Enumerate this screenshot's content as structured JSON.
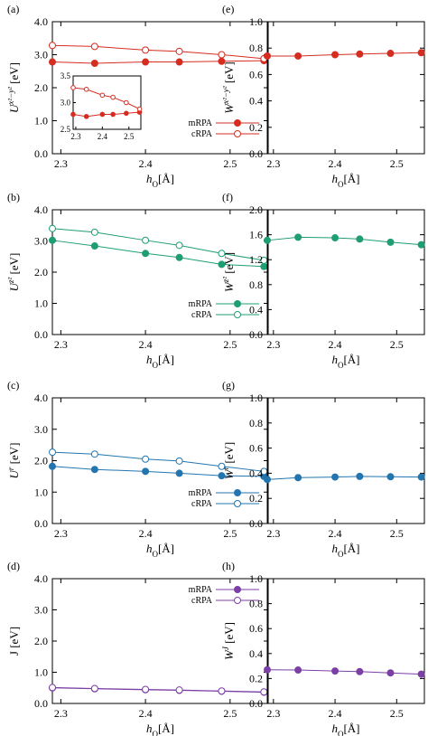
{
  "x_axis_label": "h_O [Å]",
  "chart_data": [
    {
      "panel": "(a)",
      "type": "line",
      "ylabel": "U^{x²−y²} [eV]",
      "xlim": [
        2.29,
        2.545
      ],
      "ylim": [
        0.0,
        4.0
      ],
      "xticks": [
        2.3,
        2.4,
        2.5
      ],
      "yticks": [
        0.0,
        1.0,
        2.0,
        3.0,
        4.0
      ],
      "tick_labels_x": [
        "2.3",
        "2.4",
        "2.5"
      ],
      "tick_labels_y": [
        "0.0",
        "1.0",
        "2.0",
        "3.0",
        "4.0"
      ],
      "color": "#d62d20",
      "legend": "bottom-right",
      "x": [
        2.29,
        2.34,
        2.4,
        2.44,
        2.49,
        2.54
      ],
      "series": [
        {
          "name": "mRPA",
          "values": [
            2.78,
            2.74,
            2.78,
            2.78,
            2.8,
            2.82
          ],
          "marker": "filled"
        },
        {
          "name": "cRPA",
          "values": [
            3.28,
            3.25,
            3.14,
            3.1,
            3.0,
            2.88
          ],
          "marker": "open"
        }
      ],
      "inset": {
        "xlim": [
          2.29,
          2.545
        ],
        "ylim": [
          2.5,
          3.5
        ],
        "xticks": [
          2.3,
          2.4,
          2.5
        ],
        "yticks": [
          2.5,
          3.0,
          3.5
        ],
        "tick_labels_x": [
          "2.3",
          "2.4",
          "2.5"
        ],
        "tick_labels_y": [
          "2.5",
          "3.0",
          "3.5"
        ]
      }
    },
    {
      "panel": "(b)",
      "type": "line",
      "ylabel": "U^{z²} [eV]",
      "xlim": [
        2.29,
        2.545
      ],
      "ylim": [
        0.0,
        4.0
      ],
      "xticks": [
        2.3,
        2.4,
        2.5
      ],
      "yticks": [
        0.0,
        1.0,
        2.0,
        3.0,
        4.0
      ],
      "tick_labels_x": [
        "2.3",
        "2.4",
        "2.5"
      ],
      "tick_labels_y": [
        "0.0",
        "1.0",
        "2.0",
        "3.0",
        "4.0"
      ],
      "color": "#1f9e73",
      "legend": "bottom-right",
      "x": [
        2.29,
        2.34,
        2.4,
        2.44,
        2.49,
        2.54
      ],
      "series": [
        {
          "name": "mRPA",
          "values": [
            3.02,
            2.84,
            2.6,
            2.47,
            2.25,
            2.18
          ],
          "marker": "filled"
        },
        {
          "name": "cRPA",
          "values": [
            3.4,
            3.28,
            3.02,
            2.86,
            2.6,
            2.38
          ],
          "marker": "open"
        }
      ]
    },
    {
      "panel": "(c)",
      "type": "line",
      "ylabel": "U^{r} [eV]",
      "xlim": [
        2.29,
        2.545
      ],
      "ylim": [
        0.0,
        4.0
      ],
      "xticks": [
        2.3,
        2.4,
        2.5
      ],
      "yticks": [
        0.0,
        1.0,
        2.0,
        3.0,
        4.0
      ],
      "tick_labels_x": [
        "2.3",
        "2.4",
        "2.5"
      ],
      "tick_labels_y": [
        "0.0",
        "1.0",
        "2.0",
        "3.0",
        "4.0"
      ],
      "color": "#2375b0",
      "legend": "bottom-right",
      "x": [
        2.29,
        2.34,
        2.4,
        2.44,
        2.49,
        2.54
      ],
      "series": [
        {
          "name": "mRPA",
          "values": [
            1.82,
            1.72,
            1.66,
            1.6,
            1.52,
            1.5
          ],
          "marker": "filled"
        },
        {
          "name": "cRPA",
          "values": [
            2.27,
            2.21,
            2.05,
            1.99,
            1.82,
            1.66
          ],
          "marker": "open"
        }
      ]
    },
    {
      "panel": "(d)",
      "type": "line",
      "ylabel": "J [eV]",
      "xlim": [
        2.29,
        2.545
      ],
      "ylim": [
        0.0,
        4.0
      ],
      "xticks": [
        2.3,
        2.4,
        2.5
      ],
      "yticks": [
        0.0,
        1.0,
        2.0,
        3.0,
        4.0
      ],
      "tick_labels_x": [
        "2.3",
        "2.4",
        "2.5"
      ],
      "tick_labels_y": [
        "0.0",
        "1.0",
        "2.0",
        "3.0",
        "4.0"
      ],
      "color": "#7b3fa6",
      "legend": "top-right",
      "x": [
        2.29,
        2.34,
        2.4,
        2.44,
        2.49,
        2.54
      ],
      "series": [
        {
          "name": "mRPA",
          "values": [
            0.5,
            0.47,
            0.44,
            0.42,
            0.39,
            0.36
          ],
          "marker": "filled"
        },
        {
          "name": "cRPA",
          "values": [
            0.51,
            0.48,
            0.45,
            0.43,
            0.4,
            0.37
          ],
          "marker": "open"
        }
      ]
    },
    {
      "panel": "(e)",
      "type": "line",
      "ylabel": "W^{x²−y²} [eV]",
      "xlim": [
        2.29,
        2.545
      ],
      "ylim": [
        0.0,
        1.0
      ],
      "xticks": [
        2.3,
        2.4,
        2.5
      ],
      "yticks": [
        0.0,
        0.2,
        0.4,
        0.6,
        0.8,
        1.0
      ],
      "tick_labels_x": [
        "2.3",
        "2.4",
        "2.5"
      ],
      "tick_labels_y": [
        "0.0",
        "0.2",
        "0.4",
        "0.6",
        "0.8",
        "1.0"
      ],
      "color": "#d62d20",
      "legend": "none",
      "x": [
        2.29,
        2.34,
        2.4,
        2.44,
        2.49,
        2.54
      ],
      "series": [
        {
          "name": "",
          "values": [
            0.74,
            0.74,
            0.75,
            0.755,
            0.76,
            0.765
          ],
          "marker": "filled"
        }
      ]
    },
    {
      "panel": "(f)",
      "type": "line",
      "ylabel": "W^{z²} [eV]",
      "xlim": [
        2.29,
        2.545
      ],
      "ylim": [
        0.0,
        2.0
      ],
      "xticks": [
        2.3,
        2.4,
        2.5
      ],
      "yticks": [
        0.0,
        0.4,
        0.8,
        1.2,
        1.6,
        2.0
      ],
      "tick_labels_x": [
        "2.3",
        "2.4",
        "2.5"
      ],
      "tick_labels_y": [
        "0.0",
        "0.4",
        "0.8",
        "1.2",
        "1.6",
        "2.0"
      ],
      "color": "#1f9e73",
      "legend": "none",
      "x": [
        2.29,
        2.34,
        2.4,
        2.44,
        2.49,
        2.54
      ],
      "series": [
        {
          "name": "",
          "values": [
            1.51,
            1.56,
            1.55,
            1.53,
            1.48,
            1.44
          ],
          "marker": "filled"
        }
      ]
    },
    {
      "panel": "(g)",
      "type": "line",
      "ylabel": "W^{r} [eV]",
      "xlim": [
        2.29,
        2.545
      ],
      "ylim": [
        0.0,
        1.0
      ],
      "xticks": [
        2.3,
        2.4,
        2.5
      ],
      "yticks": [
        0.0,
        0.2,
        0.4,
        0.6,
        0.8,
        1.0
      ],
      "tick_labels_x": [
        "2.3",
        "2.4",
        "2.5"
      ],
      "tick_labels_y": [
        "0.0",
        "0.2",
        "0.4",
        "0.6",
        "0.8",
        "1.0"
      ],
      "color": "#2375b0",
      "legend": "none",
      "x": [
        2.29,
        2.34,
        2.4,
        2.44,
        2.49,
        2.54
      ],
      "series": [
        {
          "name": "",
          "values": [
            0.35,
            0.365,
            0.37,
            0.375,
            0.372,
            0.37
          ],
          "marker": "filled"
        }
      ]
    },
    {
      "panel": "(h)",
      "type": "line",
      "ylabel": "W^{J} [eV]",
      "xlim": [
        2.29,
        2.545
      ],
      "ylim": [
        0.0,
        1.0
      ],
      "xticks": [
        2.3,
        2.4,
        2.5
      ],
      "yticks": [
        0.0,
        0.2,
        0.4,
        0.6,
        0.8,
        1.0
      ],
      "tick_labels_x": [
        "2.3",
        "2.4",
        "2.5"
      ],
      "tick_labels_y": [
        "0.0",
        "0.2",
        "0.4",
        "0.6",
        "0.8",
        "1.0"
      ],
      "color": "#7b3fa6",
      "legend": "none",
      "x": [
        2.29,
        2.34,
        2.4,
        2.44,
        2.49,
        2.54
      ],
      "series": [
        {
          "name": "",
          "values": [
            0.27,
            0.268,
            0.26,
            0.255,
            0.245,
            0.235
          ],
          "marker": "filled"
        }
      ]
    }
  ]
}
